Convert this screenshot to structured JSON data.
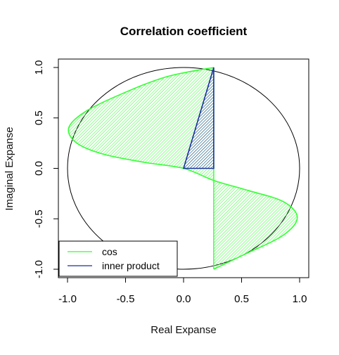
{
  "chart_data": {
    "type": "area",
    "title": "Correlation coefficient",
    "xlabel": "Real Expanse",
    "ylabel": "Imaginal Expanse",
    "xlim": [
      -1.0,
      1.0
    ],
    "ylim": [
      -1.0,
      1.0
    ],
    "xticks": [
      "-1.0",
      "-0.5",
      "0.0",
      "0.5",
      "1.0"
    ],
    "yticks": [
      "-1.0",
      "-0.5",
      "0.0",
      "0.5",
      "1.0"
    ],
    "grid": false,
    "legend_position": "bottom-left",
    "reference_circle": {
      "center": [
        0,
        0
      ],
      "radius": 1.0
    },
    "series": [
      {
        "name": "cos",
        "color": "#33ff33",
        "fill": "hatched",
        "baseline_x": 0.26,
        "points": [
          [
            0.26,
            1.0
          ],
          [
            -0.14,
            0.91
          ],
          [
            -0.53,
            0.74
          ],
          [
            -0.85,
            0.56
          ],
          [
            -0.99,
            0.4
          ],
          [
            -0.92,
            0.25
          ],
          [
            -0.69,
            0.14
          ],
          [
            -0.34,
            0.06
          ],
          [
            0.0,
            0.0
          ],
          [
            0.26,
            -0.12
          ],
          [
            0.56,
            -0.22
          ],
          [
            0.86,
            -0.33
          ],
          [
            0.98,
            -0.49
          ],
          [
            0.85,
            -0.67
          ],
          [
            0.53,
            -0.85
          ],
          [
            0.26,
            -1.0
          ]
        ]
      },
      {
        "name": "inner product",
        "color": "#1a2fa0",
        "fill": "hatched",
        "points": [
          [
            0.0,
            0.0
          ],
          [
            0.26,
            0.0
          ],
          [
            0.26,
            1.0
          ]
        ]
      }
    ]
  }
}
